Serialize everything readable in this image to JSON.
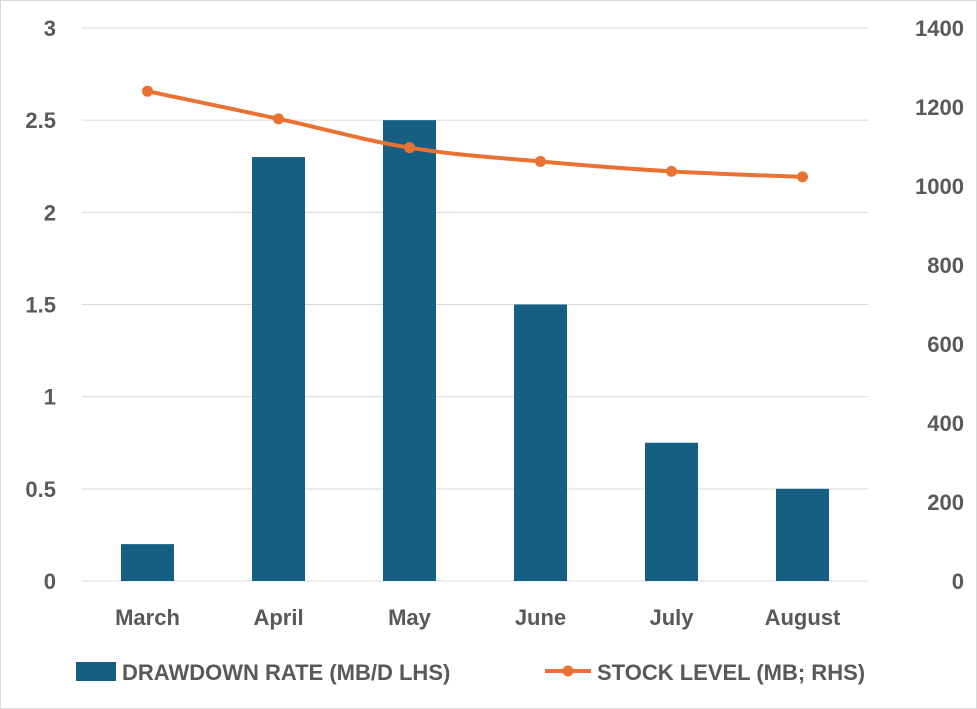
{
  "chart_data": {
    "type": "bar+line",
    "categories": [
      "March",
      "April",
      "May",
      "June",
      "July",
      "August"
    ],
    "series": [
      {
        "name": "DRAWDOWN RATE (MB/D LHS)",
        "type": "bar",
        "axis": "left",
        "color": "#156082",
        "values": [
          0.2,
          2.3,
          2.5,
          1.5,
          0.75,
          0.5
        ]
      },
      {
        "name": "STOCK LEVEL (MB; RHS)",
        "type": "line",
        "axis": "right",
        "color": "#E97132",
        "values": [
          1240,
          1170,
          1097,
          1062,
          1037,
          1023
        ]
      }
    ],
    "left_axis": {
      "min": 0,
      "max": 3,
      "ticks": [
        "0",
        "0.5",
        "1",
        "1.5",
        "2",
        "2.5",
        "3"
      ]
    },
    "right_axis": {
      "min": 0,
      "max": 1400,
      "ticks": [
        "0",
        "200",
        "400",
        "600",
        "800",
        "1000",
        "1200",
        "1400"
      ]
    },
    "grid": true,
    "legend": "bottom"
  }
}
